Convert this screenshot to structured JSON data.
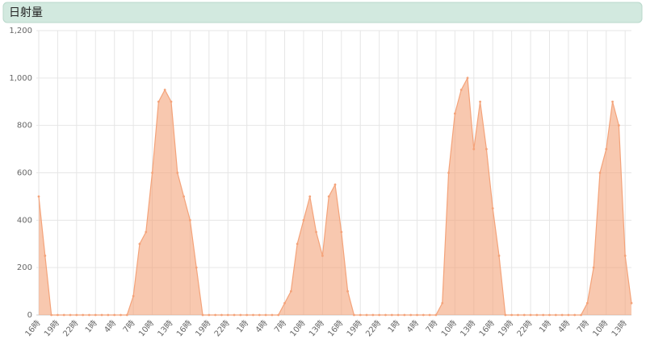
{
  "chart_data": {
    "type": "area",
    "title": "日射量",
    "categories": [
      "16時",
      null,
      null,
      "19時",
      null,
      null,
      "22時",
      null,
      null,
      "1時",
      null,
      null,
      "4時",
      null,
      null,
      "7時",
      null,
      null,
      "10時",
      null,
      null,
      "13時",
      null,
      null,
      "16時",
      null,
      null,
      "19時",
      null,
      null,
      "22時",
      null,
      null,
      "1時",
      null,
      null,
      "4時",
      null,
      null,
      "7時",
      null,
      null,
      "10時",
      null,
      null,
      "13時",
      null,
      null,
      "16時",
      null,
      null,
      "19時",
      null,
      null,
      "22時",
      null,
      null,
      "1時",
      null,
      null,
      "4時",
      null,
      null,
      "7時",
      null,
      null,
      "10時",
      null,
      null,
      "13時",
      null,
      null,
      "16時",
      null,
      null,
      "19時",
      null,
      null,
      "22時",
      null,
      null,
      "1時",
      null,
      null,
      "4時",
      null,
      null,
      "7時",
      null,
      null,
      "10時",
      null,
      null,
      "13時",
      null
    ],
    "values": [
      500,
      250,
      0,
      0,
      0,
      0,
      0,
      0,
      0,
      0,
      0,
      0,
      0,
      0,
      0,
      80,
      300,
      350,
      600,
      900,
      950,
      900,
      600,
      500,
      400,
      200,
      0,
      0,
      0,
      0,
      0,
      0,
      0,
      0,
      0,
      0,
      0,
      0,
      0,
      50,
      100,
      300,
      400,
      500,
      350,
      250,
      500,
      550,
      350,
      100,
      0,
      0,
      0,
      0,
      0,
      0,
      0,
      0,
      0,
      0,
      0,
      0,
      0,
      0,
      50,
      600,
      850,
      950,
      1000,
      700,
      900,
      700,
      450,
      250,
      0,
      0,
      0,
      0,
      0,
      0,
      0,
      0,
      0,
      0,
      0,
      0,
      0,
      50,
      200,
      600,
      700,
      900,
      800,
      250,
      50
    ],
    "color": "#f4a37a",
    "ylim": [
      0,
      1200
    ],
    "yticks": [
      0,
      200,
      400,
      600,
      800,
      {
        "value": 1000,
        "label": "1,000"
      },
      {
        "value": 1200,
        "label": "1,200"
      }
    ],
    "grid": true
  }
}
